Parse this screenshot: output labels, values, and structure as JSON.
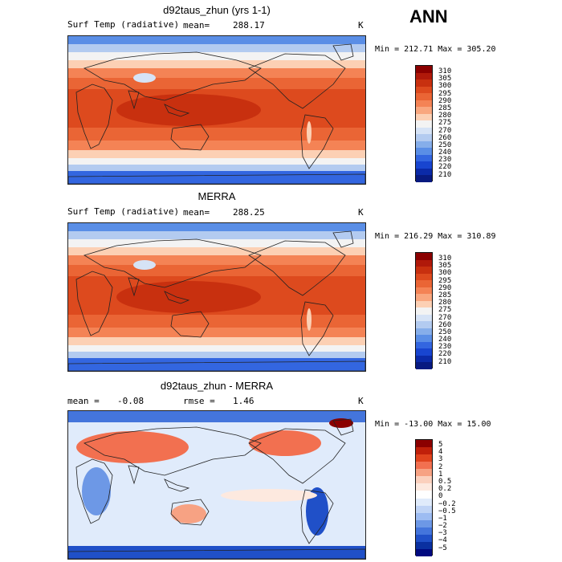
{
  "season": "ANN",
  "panels": [
    {
      "title": "d92taus_zhun (yrs 1-1)",
      "field_label": "Surf Temp (radiative)",
      "stat_label": "mean=",
      "stat_value": "288.17",
      "units": "K",
      "minmax_text": "Min = 212.71 Max = 305.20",
      "colorbar_labels": [
        "310",
        "305",
        "300",
        "295",
        "290",
        "285",
        "280",
        "275",
        "270",
        "260",
        "250",
        "240",
        "230",
        "220",
        "210"
      ]
    },
    {
      "title": "MERRA",
      "field_label": "Surf Temp (radiative)",
      "stat_label": "mean=",
      "stat_value": "288.25",
      "units": "K",
      "minmax_text": "Min = 216.29 Max = 310.89",
      "colorbar_labels": [
        "310",
        "305",
        "300",
        "295",
        "290",
        "285",
        "280",
        "275",
        "270",
        "260",
        "250",
        "240",
        "230",
        "220",
        "210"
      ]
    },
    {
      "title": "d92taus_zhun - MERRA",
      "mean_label": "mean =",
      "mean_value": "-0.08",
      "rmse_label": "rmse =",
      "rmse_value": "1.46",
      "units": "K",
      "minmax_text": "Min = -13.00 Max =  15.00",
      "colorbar_labels": [
        "5",
        "4",
        "3",
        "2",
        "1",
        "0.5",
        "0.2",
        "0",
        "−0.2",
        "−0.5",
        "−1",
        "−2",
        "−3",
        "−4",
        "−5"
      ]
    }
  ],
  "colors": {
    "abs_scale": [
      "#8b0000",
      "#b0190a",
      "#c8300f",
      "#dd4a1e",
      "#ea6535",
      "#f48355",
      "#f9a77f",
      "#fcd0b4",
      "#f3f3f3",
      "#d6e3f6",
      "#b3cbf0",
      "#86aeea",
      "#5a8ee6",
      "#3366e0",
      "#1845d0",
      "#0b2aa8",
      "#081a80"
    ],
    "diff_scale": [
      "#8b0000",
      "#c0200a",
      "#e0441e",
      "#f27050",
      "#f7a283",
      "#fbd0bd",
      "#fde9df",
      "#ffffff",
      "#e0ebfb",
      "#c0d4f6",
      "#9dbcf2",
      "#6d98e6",
      "#4475dc",
      "#2050c8",
      "#0a30a0",
      "#000a80"
    ]
  }
}
